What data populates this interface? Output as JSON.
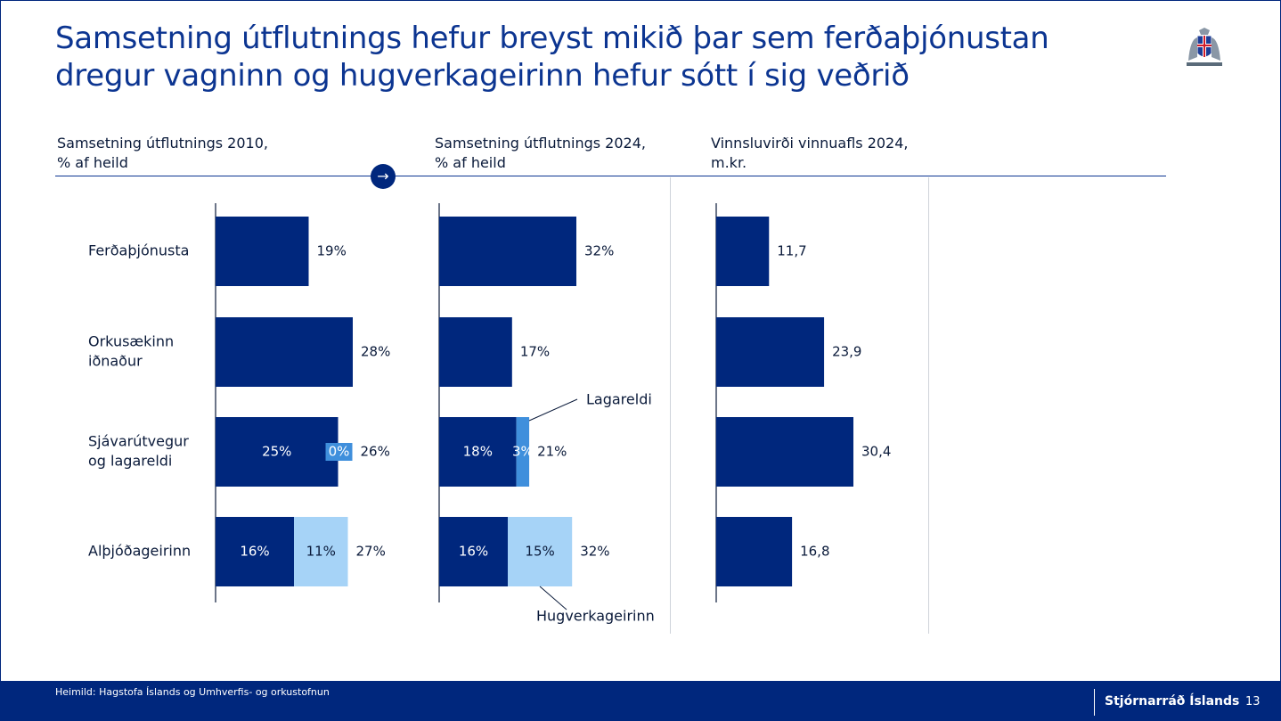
{
  "slide": {
    "title": "Samsetning útflutnings hefur breyst mikið þar sem ferðaþjónustan dregur vagninn og hugverkageirinn hefur sótt í sig veðrið",
    "source": "Heimild: Hagstofa Íslands og Umhverfis- og orkustofnun",
    "brand": "Stjórnarráð Íslands",
    "page_number": "13"
  },
  "colors": {
    "primary": "#00277d",
    "lagareldi": "#3f8fdc",
    "hugverk": "#a6d3f7",
    "title_text": "#0c3591"
  },
  "chart_data": [
    {
      "type": "bar",
      "orientation": "horizontal",
      "title": "Samsetning útflutnings 2010,",
      "subtitle": "% af heild",
      "categories": [
        "Ferðaþjónusta",
        "Orkusækinn iðnaður",
        "Sjávarútvegur og lagareldi",
        "Alþjóðageirinn"
      ],
      "series": [
        {
          "values": [
            19,
            28,
            25,
            16
          ],
          "color": "#00277d"
        },
        {
          "values": [
            0,
            0,
            0,
            11
          ],
          "color": "#a6d3f7"
        }
      ],
      "lagareldi_values": [
        null,
        null,
        0,
        null
      ],
      "labels": {
        "totals": [
          "19%",
          "28%",
          "26%",
          "27%"
        ],
        "inner_primary": [
          "",
          "",
          "25%",
          "16%"
        ],
        "inner_lagareldi": [
          "",
          "",
          "0%",
          ""
        ],
        "inner_hugverk": [
          "",
          "",
          "",
          "11%"
        ]
      },
      "xlim": [
        0,
        32
      ]
    },
    {
      "type": "bar",
      "orientation": "horizontal",
      "title": "Samsetning útflutnings 2024,",
      "subtitle": "% af heild",
      "categories": [
        "Ferðaþjónusta",
        "Orkusækinn iðnaður",
        "Sjávarútvegur og lagareldi",
        "Alþjóðageirinn"
      ],
      "series": [
        {
          "values": [
            32,
            17,
            18,
            16
          ],
          "color": "#00277d"
        },
        {
          "name": "Lagareldi",
          "values": [
            0,
            0,
            3,
            0
          ],
          "color": "#3f8fdc"
        },
        {
          "name": "Hugverkageirinn",
          "values": [
            0,
            0,
            0,
            15
          ],
          "color": "#a6d3f7"
        }
      ],
      "labels": {
        "totals": [
          "32%",
          "17%",
          "21%",
          "32%"
        ],
        "inner_primary": [
          "",
          "",
          "18%",
          "16%"
        ],
        "inner_lagareldi": [
          "",
          "",
          "3%",
          ""
        ],
        "inner_hugverk": [
          "",
          "",
          "",
          "15%"
        ]
      },
      "annotations": [
        "Lagareldi",
        "Hugverkageirinn"
      ],
      "xlim": [
        0,
        32
      ]
    },
    {
      "type": "bar",
      "orientation": "horizontal",
      "title": "Vinnsluvirði vinnuafls 2024,",
      "subtitle": "m.kr.",
      "categories": [
        "Ferðaþjónusta",
        "Orkusækinn iðnaður",
        "Sjávarútvegur og lagareldi",
        "Alþjóðageirinn"
      ],
      "series": [
        {
          "values": [
            11.7,
            23.9,
            30.4,
            16.8
          ],
          "color": "#00277d"
        }
      ],
      "labels": {
        "totals": [
          "11,7",
          "23,9",
          "30,4",
          "16,8"
        ]
      },
      "xlim": [
        0,
        30.4
      ]
    }
  ],
  "category_labels": [
    [
      "Ferðaþjónusta"
    ],
    [
      "Orkusækinn",
      "iðnaður"
    ],
    [
      "Sjávarútvegur",
      "og lagareldi"
    ],
    [
      "Alþjóðageirinn"
    ]
  ]
}
